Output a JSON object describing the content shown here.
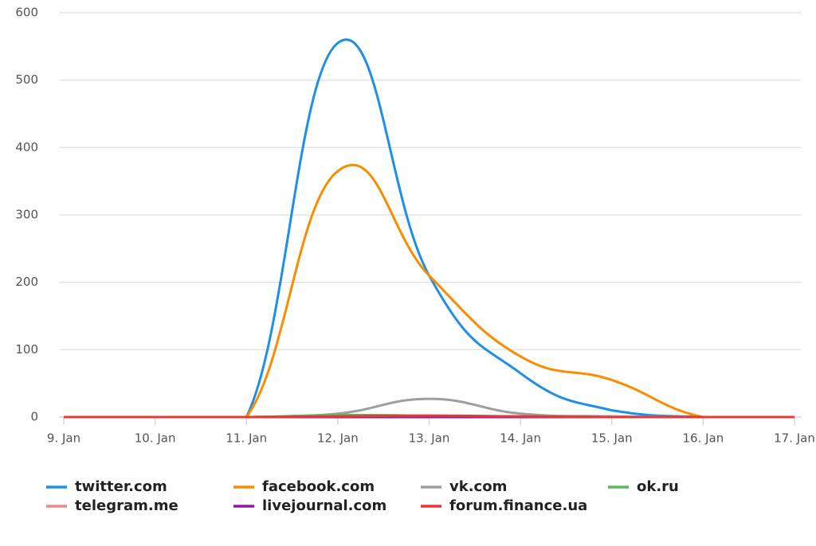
{
  "chart_data": {
    "type": "line",
    "categories": [
      "9. Jan",
      "10. Jan",
      "11. Jan",
      "12. Jan",
      "13. Jan",
      "14. Jan",
      "15. Jan",
      "16. Jan",
      "17. Jan"
    ],
    "series": [
      {
        "name": "twitter.com",
        "color": "#1e8fe8",
        "values": [
          0,
          0,
          0,
          555,
          210,
          65,
          10,
          0,
          0
        ]
      },
      {
        "name": "facebook.com",
        "color": "#fb8c00",
        "values": [
          0,
          0,
          0,
          365,
          210,
          90,
          55,
          0,
          0
        ]
      },
      {
        "name": "vk.com",
        "color": "#9e9e9e",
        "values": [
          0,
          0,
          0,
          5,
          27,
          5,
          1,
          0,
          0
        ]
      },
      {
        "name": "ok.ru",
        "color": "#5cb85c",
        "values": [
          0,
          0,
          0,
          3,
          2,
          1,
          0,
          0,
          0
        ]
      },
      {
        "name": "telegram.me",
        "color": "#e88a8a",
        "values": [
          0,
          0,
          0,
          0,
          0,
          0,
          0,
          0,
          0
        ]
      },
      {
        "name": "livejournal.com",
        "color": "#8e1a9e",
        "values": [
          0,
          0,
          0,
          0,
          0,
          0,
          0,
          0,
          0
        ]
      },
      {
        "name": "forum.finance.ua",
        "color": "#e53935",
        "values": [
          0,
          0,
          0,
          1,
          2,
          1,
          0,
          0,
          0
        ]
      }
    ],
    "ylim": [
      0,
      600
    ],
    "yticks": [
      0,
      100,
      200,
      300,
      400,
      500,
      600
    ],
    "grid": true
  }
}
